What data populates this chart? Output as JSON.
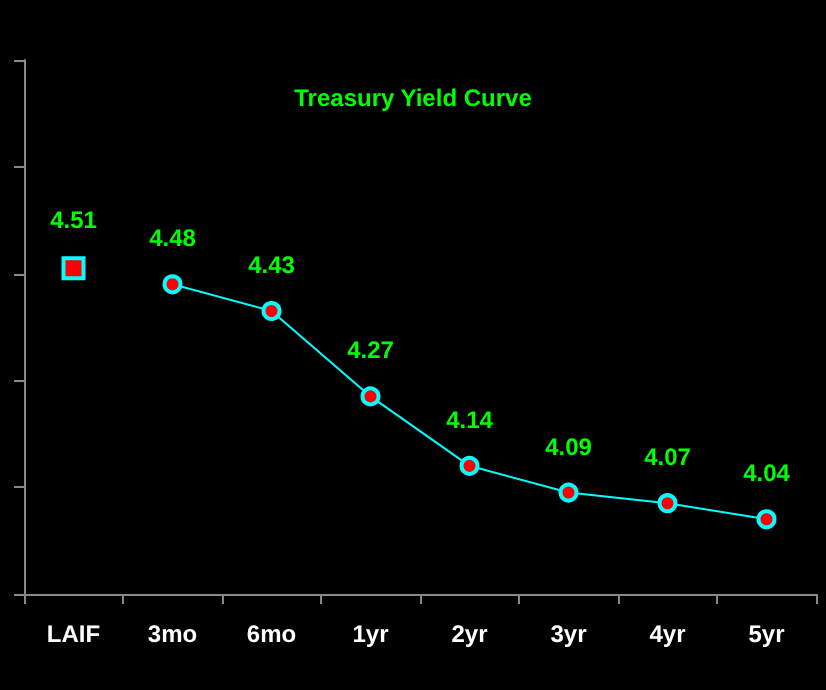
{
  "chart_data": {
    "type": "line",
    "title": "Treasury Yield Curve",
    "categories": [
      "LAIF",
      "3mo",
      "6mo",
      "1yr",
      "2yr",
      "3yr",
      "4yr",
      "5yr"
    ],
    "series": [
      {
        "color": "#00ffff",
        "marker": "square",
        "line_style": "none",
        "values": [
          4.51,
          null,
          null,
          null,
          null,
          null,
          null,
          null
        ]
      },
      {
        "color": "#00ffff",
        "marker": "circle",
        "line_style": "solid",
        "values": [
          null,
          4.48,
          4.43,
          4.27,
          4.14,
          4.09,
          4.07,
          4.04
        ]
      }
    ],
    "ylim": [
      3.9,
      4.9
    ],
    "yticks": [
      {
        "value": 3.9,
        "label": null
      },
      {
        "value": 4.1,
        "label": null
      },
      {
        "value": 4.3,
        "label": null
      },
      {
        "value": 4.5,
        "label": null
      },
      {
        "value": 4.7,
        "label": null
      },
      {
        "value": 4.9,
        "label": null
      }
    ],
    "tick_labels": "x",
    "data_labels": true
  }
}
